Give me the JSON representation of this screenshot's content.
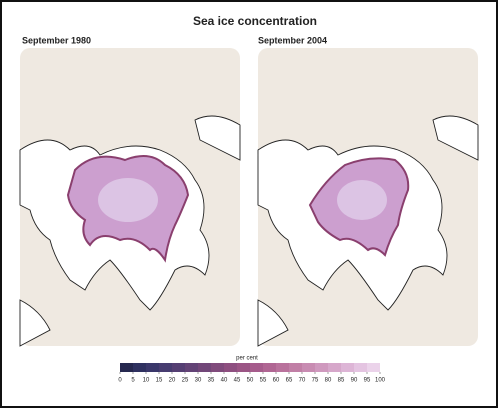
{
  "title": "Sea ice concentration",
  "panels": [
    {
      "label": "September 1980"
    },
    {
      "label": "September 2004"
    }
  ],
  "legend": {
    "label": "per cent",
    "ticks": [
      0,
      5,
      10,
      15,
      20,
      25,
      30,
      35,
      40,
      45,
      50,
      55,
      60,
      65,
      70,
      75,
      80,
      85,
      90,
      95,
      100
    ],
    "colors": [
      "#26284f",
      "#2f3160",
      "#3a376a",
      "#473c70",
      "#553f73",
      "#634376",
      "#724779",
      "#804b7c",
      "#8e4f80",
      "#9b5585",
      "#a65c8c",
      "#b06693",
      "#b9729c",
      "#c17fa6",
      "#c88cb2",
      "#cf99be",
      "#d6a7ca",
      "#ddb5d6",
      "#e4c4e1",
      "#ebd3ea"
    ]
  }
}
